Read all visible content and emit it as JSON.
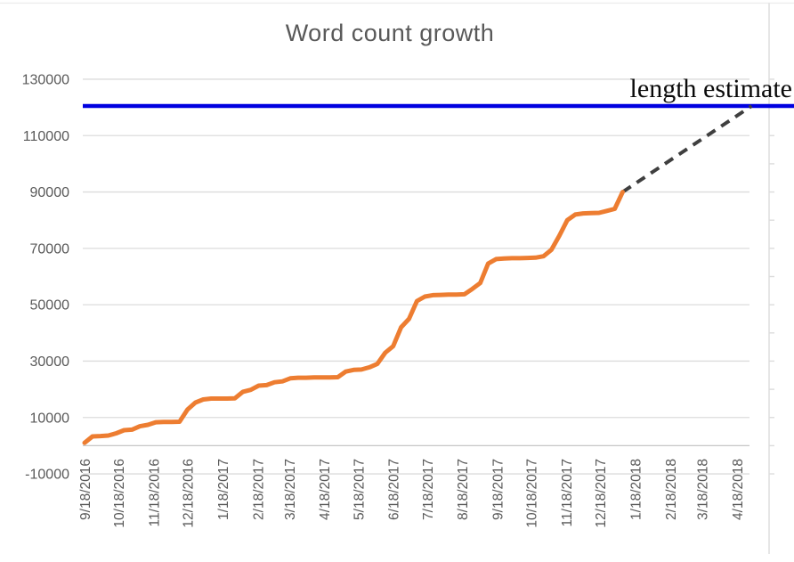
{
  "title": "Word count growth",
  "annotation": {
    "label": "length estimate"
  },
  "colors": {
    "series_orange": "#ED7D31",
    "estimate_blue": "#0000E0",
    "projection_dash": "#3f3f3f",
    "gridline": "#DCDCDC",
    "zero_axis": "#C6C6C6",
    "axis_text": "#595959",
    "border": "#ECECEC"
  },
  "chart_data": {
    "type": "line",
    "title": "Word count growth",
    "xlabel": "",
    "ylabel": "",
    "ylim": [
      -10000,
      130000
    ],
    "y_ticks": [
      -10000,
      10000,
      30000,
      50000,
      70000,
      90000,
      110000,
      130000
    ],
    "y_minor_tick_step": 10000,
    "grid": "horizontal",
    "legend": "none",
    "x_tick_labels": [
      "9/18/2016",
      "10/18/2016",
      "11/18/2016",
      "12/18/2016",
      "1/18/2017",
      "2/18/2017",
      "3/18/2017",
      "4/18/2017",
      "5/18/2017",
      "6/18/2017",
      "7/18/2017",
      "8/18/2017",
      "9/18/2017",
      "10/18/2017",
      "11/18/2017",
      "12/18/2017",
      "1/18/2018",
      "2/18/2018",
      "3/18/2018",
      "4/18/2018"
    ],
    "series": [
      {
        "name": "word-count",
        "style": "solid",
        "color": "#ED7D31",
        "points": [
          [
            "9/18/2016",
            1000
          ],
          [
            "9/25/2016",
            3300
          ],
          [
            "10/2/2016",
            3400
          ],
          [
            "10/9/2016",
            3600
          ],
          [
            "10/16/2016",
            4400
          ],
          [
            "10/23/2016",
            5500
          ],
          [
            "10/30/2016",
            5700
          ],
          [
            "11/6/2016",
            6900
          ],
          [
            "11/13/2016",
            7400
          ],
          [
            "11/20/2016",
            8300
          ],
          [
            "11/27/2016",
            8400
          ],
          [
            "12/4/2016",
            8400
          ],
          [
            "12/11/2016",
            8500
          ],
          [
            "12/18/2016",
            12800
          ],
          [
            "12/25/2016",
            15300
          ],
          [
            "1/1/2017",
            16400
          ],
          [
            "1/8/2017",
            16700
          ],
          [
            "1/15/2017",
            16700
          ],
          [
            "1/22/2017",
            16700
          ],
          [
            "1/29/2017",
            16800
          ],
          [
            "2/5/2017",
            19100
          ],
          [
            "2/12/2017",
            19800
          ],
          [
            "2/19/2017",
            21300
          ],
          [
            "2/26/2017",
            21500
          ],
          [
            "3/5/2017",
            22500
          ],
          [
            "3/12/2017",
            22800
          ],
          [
            "3/19/2017",
            23900
          ],
          [
            "3/26/2017",
            24100
          ],
          [
            "4/2/2017",
            24100
          ],
          [
            "4/9/2017",
            24200
          ],
          [
            "4/16/2017",
            24200
          ],
          [
            "4/23/2017",
            24200
          ],
          [
            "4/30/2017",
            24300
          ],
          [
            "5/7/2017",
            26300
          ],
          [
            "5/14/2017",
            26900
          ],
          [
            "5/21/2017",
            27000
          ],
          [
            "5/28/2017",
            27800
          ],
          [
            "6/4/2017",
            29000
          ],
          [
            "6/11/2017",
            33000
          ],
          [
            "6/18/2017",
            35300
          ],
          [
            "6/25/2017",
            42000
          ],
          [
            "7/2/2017",
            45000
          ],
          [
            "7/9/2017",
            51300
          ],
          [
            "7/16/2017",
            52900
          ],
          [
            "7/23/2017",
            53400
          ],
          [
            "7/30/2017",
            53500
          ],
          [
            "8/6/2017",
            53600
          ],
          [
            "8/13/2017",
            53600
          ],
          [
            "8/20/2017",
            53700
          ],
          [
            "8/27/2017",
            55600
          ],
          [
            "9/3/2017",
            57700
          ],
          [
            "9/10/2017",
            64600
          ],
          [
            "9/17/2017",
            66200
          ],
          [
            "9/24/2017",
            66400
          ],
          [
            "10/1/2017",
            66500
          ],
          [
            "10/8/2017",
            66500
          ],
          [
            "10/15/2017",
            66600
          ],
          [
            "10/22/2017",
            66700
          ],
          [
            "10/29/2017",
            67200
          ],
          [
            "11/5/2017",
            69500
          ],
          [
            "11/12/2017",
            74500
          ],
          [
            "11/19/2017",
            80000
          ],
          [
            "11/26/2017",
            82000
          ],
          [
            "12/3/2017",
            82400
          ],
          [
            "12/10/2017",
            82500
          ],
          [
            "12/17/2017",
            82600
          ],
          [
            "12/24/2017",
            83300
          ],
          [
            "12/31/2017",
            84000
          ],
          [
            "1/7/2018",
            90000
          ]
        ]
      },
      {
        "name": "projection",
        "style": "dashed",
        "color": "#3f3f3f",
        "points": [
          [
            "1/7/2018",
            90000
          ],
          [
            "5/1/2018",
            120500
          ]
        ]
      },
      {
        "name": "length-estimate",
        "style": "solid",
        "color": "#0000E0",
        "value": 120500,
        "span": "full-width"
      }
    ]
  }
}
